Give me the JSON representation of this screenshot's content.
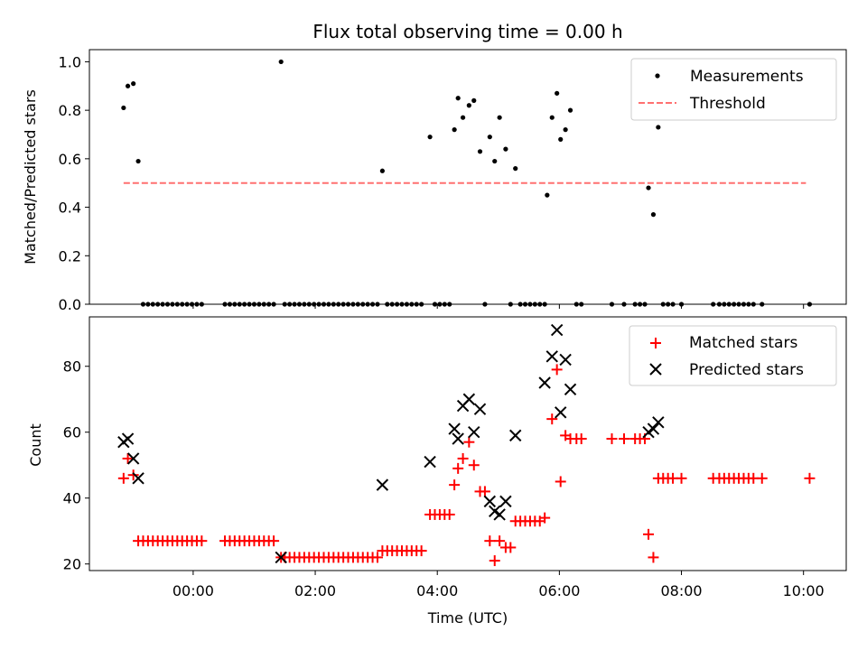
{
  "chart_data": [
    {
      "type": "scatter",
      "title": "Flux total observing time = 0.00 h",
      "xlabel": "",
      "ylabel": "Matched/Predicted stars",
      "xlim": [
        -1.7,
        10.7
      ],
      "ylim": [
        0.0,
        1.05
      ],
      "yticks": [
        0.0,
        0.2,
        0.4,
        0.6,
        0.8,
        1.0
      ],
      "ytick_labels": [
        "0.0",
        "0.2",
        "0.4",
        "0.6",
        "0.8",
        "1.0"
      ],
      "legend_position": "top-right",
      "series": [
        {
          "name": "Measurements",
          "marker": "dot",
          "color": "#000000",
          "points": [
            [
              -1.14,
              0.81
            ],
            [
              -1.07,
              0.9
            ],
            [
              -0.98,
              0.91
            ],
            [
              -0.9,
              0.59
            ],
            [
              -0.82,
              0.0
            ],
            [
              -0.74,
              0.0
            ],
            [
              -0.66,
              0.0
            ],
            [
              -0.58,
              0.0
            ],
            [
              -0.5,
              0.0
            ],
            [
              -0.42,
              0.0
            ],
            [
              -0.34,
              0.0
            ],
            [
              -0.26,
              0.0
            ],
            [
              -0.18,
              0.0
            ],
            [
              -0.1,
              0.0
            ],
            [
              -0.02,
              0.0
            ],
            [
              0.06,
              0.0
            ],
            [
              0.14,
              0.0
            ],
            [
              0.52,
              0.0
            ],
            [
              0.6,
              0.0
            ],
            [
              0.68,
              0.0
            ],
            [
              0.76,
              0.0
            ],
            [
              0.84,
              0.0
            ],
            [
              0.92,
              0.0
            ],
            [
              1.0,
              0.0
            ],
            [
              1.08,
              0.0
            ],
            [
              1.16,
              0.0
            ],
            [
              1.24,
              0.0
            ],
            [
              1.32,
              0.0
            ],
            [
              1.44,
              1.0
            ],
            [
              1.5,
              0.0
            ],
            [
              1.58,
              0.0
            ],
            [
              1.66,
              0.0
            ],
            [
              1.74,
              0.0
            ],
            [
              1.82,
              0.0
            ],
            [
              1.9,
              0.0
            ],
            [
              1.98,
              0.0
            ],
            [
              2.06,
              0.0
            ],
            [
              2.14,
              0.0
            ],
            [
              2.22,
              0.0
            ],
            [
              2.3,
              0.0
            ],
            [
              2.38,
              0.0
            ],
            [
              2.46,
              0.0
            ],
            [
              2.54,
              0.0
            ],
            [
              2.62,
              0.0
            ],
            [
              2.7,
              0.0
            ],
            [
              2.78,
              0.0
            ],
            [
              2.86,
              0.0
            ],
            [
              2.94,
              0.0
            ],
            [
              3.02,
              0.0
            ],
            [
              3.1,
              0.55
            ],
            [
              3.18,
              0.0
            ],
            [
              3.26,
              0.0
            ],
            [
              3.34,
              0.0
            ],
            [
              3.42,
              0.0
            ],
            [
              3.5,
              0.0
            ],
            [
              3.58,
              0.0
            ],
            [
              3.66,
              0.0
            ],
            [
              3.74,
              0.0
            ],
            [
              3.88,
              0.69
            ],
            [
              3.96,
              0.0
            ],
            [
              4.04,
              0.0
            ],
            [
              4.12,
              0.0
            ],
            [
              4.2,
              0.0
            ],
            [
              4.28,
              0.72
            ],
            [
              4.34,
              0.85
            ],
            [
              4.42,
              0.77
            ],
            [
              4.52,
              0.82
            ],
            [
              4.6,
              0.84
            ],
            [
              4.7,
              0.63
            ],
            [
              4.78,
              0.0
            ],
            [
              4.86,
              0.69
            ],
            [
              4.94,
              0.59
            ],
            [
              5.02,
              0.77
            ],
            [
              5.12,
              0.64
            ],
            [
              5.2,
              0.0
            ],
            [
              5.28,
              0.56
            ],
            [
              5.36,
              0.0
            ],
            [
              5.44,
              0.0
            ],
            [
              5.52,
              0.0
            ],
            [
              5.6,
              0.0
            ],
            [
              5.68,
              0.0
            ],
            [
              5.76,
              0.0
            ],
            [
              5.8,
              0.45
            ],
            [
              5.88,
              0.77
            ],
            [
              5.96,
              0.87
            ],
            [
              6.02,
              0.68
            ],
            [
              6.1,
              0.72
            ],
            [
              6.18,
              0.8
            ],
            [
              6.28,
              0.0
            ],
            [
              6.36,
              0.0
            ],
            [
              6.86,
              0.0
            ],
            [
              7.06,
              0.0
            ],
            [
              7.24,
              0.0
            ],
            [
              7.32,
              0.0
            ],
            [
              7.4,
              0.0
            ],
            [
              7.46,
              0.48
            ],
            [
              7.54,
              0.37
            ],
            [
              7.62,
              0.73
            ],
            [
              7.7,
              0.0
            ],
            [
              7.78,
              0.0
            ],
            [
              7.86,
              0.0
            ],
            [
              8.0,
              0.0
            ],
            [
              8.52,
              0.0
            ],
            [
              8.62,
              0.0
            ],
            [
              8.7,
              0.0
            ],
            [
              8.78,
              0.0
            ],
            [
              8.86,
              0.0
            ],
            [
              8.94,
              0.0
            ],
            [
              9.02,
              0.0
            ],
            [
              9.1,
              0.0
            ],
            [
              9.18,
              0.0
            ],
            [
              9.32,
              0.0
            ],
            [
              10.1,
              0.0
            ]
          ]
        },
        {
          "name": "Threshold",
          "type": "line",
          "style": "dashed",
          "color": "#ff7070",
          "x": [
            -1.14,
            10.04
          ],
          "y": [
            0.5,
            0.5
          ]
        }
      ]
    },
    {
      "type": "scatter",
      "title": "",
      "xlabel": "Time (UTC)",
      "ylabel": "Count",
      "xlim": [
        -1.7,
        10.7
      ],
      "ylim": [
        18,
        95
      ],
      "yticks": [
        20,
        40,
        60,
        80
      ],
      "ytick_labels": [
        "20",
        "40",
        "60",
        "80"
      ],
      "xticks": [
        0,
        2,
        4,
        6,
        8,
        10
      ],
      "xtick_labels": [
        "00:00",
        "02:00",
        "04:00",
        "06:00",
        "08:00",
        "10:00"
      ],
      "legend_position": "top-right",
      "series": [
        {
          "name": "Matched stars",
          "marker": "plus",
          "color": "#ff0000",
          "points": [
            [
              -1.14,
              46
            ],
            [
              -1.07,
              52
            ],
            [
              -0.98,
              47
            ],
            [
              -0.9,
              27
            ],
            [
              -0.82,
              27
            ],
            [
              -0.74,
              27
            ],
            [
              -0.66,
              27
            ],
            [
              -0.58,
              27
            ],
            [
              -0.5,
              27
            ],
            [
              -0.42,
              27
            ],
            [
              -0.34,
              27
            ],
            [
              -0.26,
              27
            ],
            [
              -0.18,
              27
            ],
            [
              -0.1,
              27
            ],
            [
              -0.02,
              27
            ],
            [
              0.06,
              27
            ],
            [
              0.14,
              27
            ],
            [
              0.52,
              27
            ],
            [
              0.6,
              27
            ],
            [
              0.68,
              27
            ],
            [
              0.76,
              27
            ],
            [
              0.84,
              27
            ],
            [
              0.92,
              27
            ],
            [
              1.0,
              27
            ],
            [
              1.08,
              27
            ],
            [
              1.16,
              27
            ],
            [
              1.24,
              27
            ],
            [
              1.32,
              27
            ],
            [
              1.44,
              22
            ],
            [
              1.5,
              22
            ],
            [
              1.58,
              22
            ],
            [
              1.66,
              22
            ],
            [
              1.74,
              22
            ],
            [
              1.82,
              22
            ],
            [
              1.9,
              22
            ],
            [
              1.98,
              22
            ],
            [
              2.06,
              22
            ],
            [
              2.14,
              22
            ],
            [
              2.22,
              22
            ],
            [
              2.3,
              22
            ],
            [
              2.38,
              22
            ],
            [
              2.46,
              22
            ],
            [
              2.54,
              22
            ],
            [
              2.62,
              22
            ],
            [
              2.7,
              22
            ],
            [
              2.78,
              22
            ],
            [
              2.86,
              22
            ],
            [
              2.94,
              22
            ],
            [
              3.02,
              22
            ],
            [
              3.1,
              24
            ],
            [
              3.18,
              24
            ],
            [
              3.26,
              24
            ],
            [
              3.34,
              24
            ],
            [
              3.42,
              24
            ],
            [
              3.5,
              24
            ],
            [
              3.58,
              24
            ],
            [
              3.66,
              24
            ],
            [
              3.74,
              24
            ],
            [
              3.88,
              35
            ],
            [
              3.96,
              35
            ],
            [
              4.04,
              35
            ],
            [
              4.12,
              35
            ],
            [
              4.2,
              35
            ],
            [
              4.28,
              44
            ],
            [
              4.34,
              49
            ],
            [
              4.42,
              52
            ],
            [
              4.52,
              57
            ],
            [
              4.6,
              50
            ],
            [
              4.7,
              42
            ],
            [
              4.78,
              42
            ],
            [
              4.86,
              27
            ],
            [
              4.94,
              21
            ],
            [
              5.02,
              27
            ],
            [
              5.12,
              25
            ],
            [
              5.2,
              25
            ],
            [
              5.28,
              33
            ],
            [
              5.36,
              33
            ],
            [
              5.44,
              33
            ],
            [
              5.52,
              33
            ],
            [
              5.6,
              33
            ],
            [
              5.68,
              33
            ],
            [
              5.76,
              34
            ],
            [
              5.88,
              64
            ],
            [
              5.96,
              79
            ],
            [
              6.02,
              45
            ],
            [
              6.1,
              59
            ],
            [
              6.18,
              58
            ],
            [
              6.28,
              58
            ],
            [
              6.36,
              58
            ],
            [
              6.86,
              58
            ],
            [
              7.06,
              58
            ],
            [
              7.24,
              58
            ],
            [
              7.32,
              58
            ],
            [
              7.4,
              58
            ],
            [
              7.46,
              29
            ],
            [
              7.54,
              22
            ],
            [
              7.62,
              46
            ],
            [
              7.7,
              46
            ],
            [
              7.78,
              46
            ],
            [
              7.86,
              46
            ],
            [
              8.0,
              46
            ],
            [
              8.52,
              46
            ],
            [
              8.62,
              46
            ],
            [
              8.7,
              46
            ],
            [
              8.78,
              46
            ],
            [
              8.86,
              46
            ],
            [
              8.94,
              46
            ],
            [
              9.02,
              46
            ],
            [
              9.1,
              46
            ],
            [
              9.18,
              46
            ],
            [
              9.32,
              46
            ],
            [
              10.1,
              46
            ]
          ]
        },
        {
          "name": "Predicted stars",
          "marker": "x",
          "color": "#000000",
          "points": [
            [
              -1.14,
              57
            ],
            [
              -1.07,
              58
            ],
            [
              -0.98,
              52
            ],
            [
              -0.9,
              46
            ],
            [
              1.44,
              22
            ],
            [
              3.1,
              44
            ],
            [
              3.88,
              51
            ],
            [
              4.28,
              61
            ],
            [
              4.34,
              58
            ],
            [
              4.42,
              68
            ],
            [
              4.52,
              70
            ],
            [
              4.6,
              60
            ],
            [
              4.7,
              67
            ],
            [
              4.86,
              39
            ],
            [
              4.94,
              36
            ],
            [
              5.02,
              35
            ],
            [
              5.12,
              39
            ],
            [
              5.28,
              59
            ],
            [
              5.76,
              75
            ],
            [
              5.88,
              83
            ],
            [
              5.96,
              91
            ],
            [
              6.02,
              66
            ],
            [
              6.1,
              82
            ],
            [
              6.18,
              73
            ],
            [
              7.46,
              60
            ],
            [
              7.54,
              61
            ],
            [
              7.62,
              63
            ]
          ]
        }
      ]
    }
  ]
}
